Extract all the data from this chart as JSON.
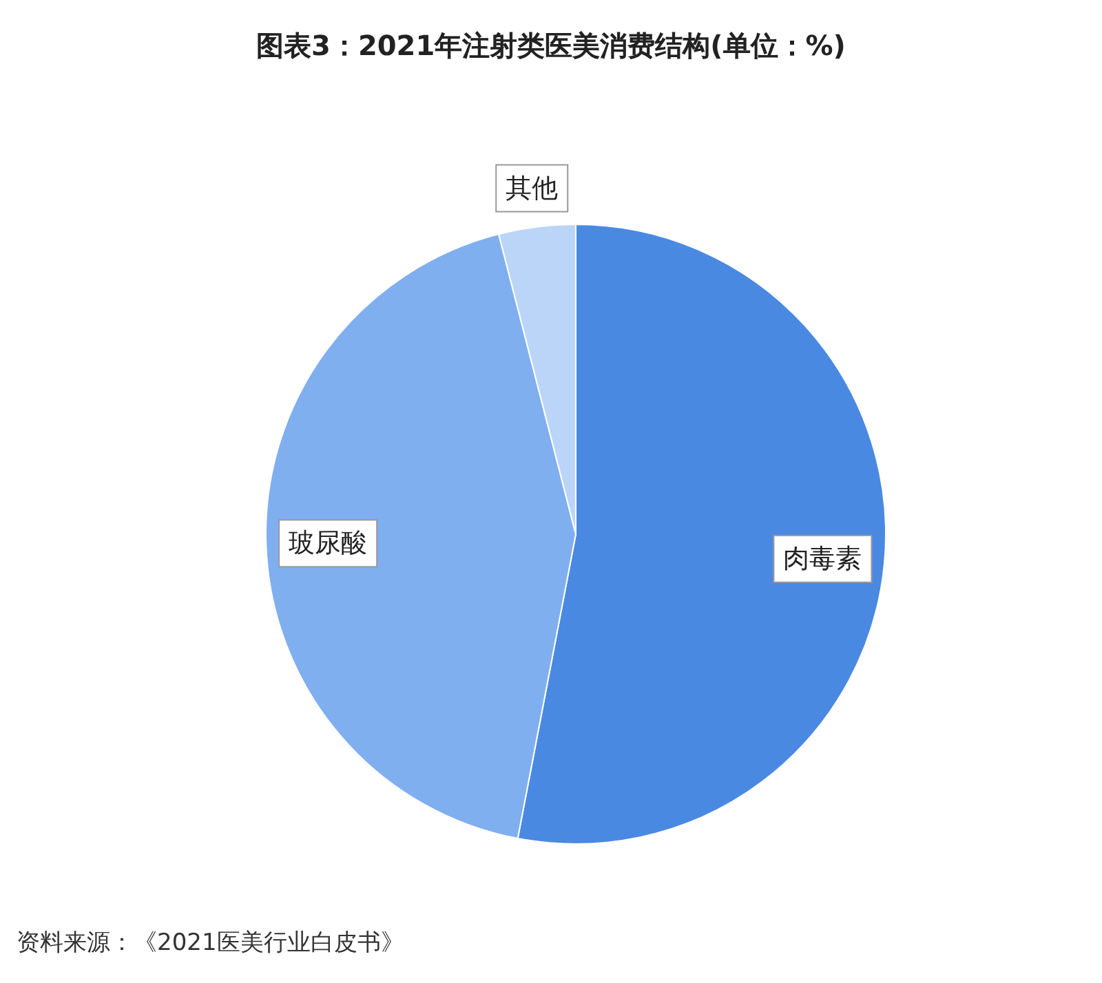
{
  "chart_data": {
    "type": "pie",
    "title": "图表3：2021年注射类医美消费结构(单位：%)",
    "categories": [
      "肉毒素",
      "玻尿酸",
      "其他"
    ],
    "values": [
      53,
      43,
      4
    ],
    "colors": [
      "#4a89e2",
      "#80aff0",
      "#bad5f8"
    ],
    "annotations": [
      "资料来源：《2021医美行业白皮书》"
    ]
  }
}
